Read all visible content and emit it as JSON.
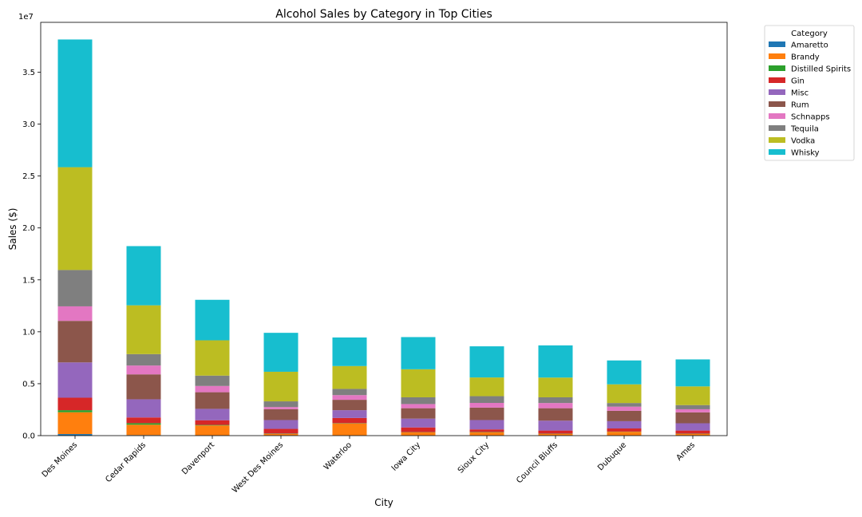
{
  "chart_data": {
    "type": "bar",
    "stacked": true,
    "title": "Alcohol Sales by Category in Top Cities",
    "xlabel": "City",
    "ylabel": "Sales ($)",
    "y_offset_label": "1e7",
    "ylim": [
      0,
      39800000
    ],
    "y_ticks": [
      0,
      5000000,
      10000000,
      15000000,
      20000000,
      25000000,
      30000000,
      35000000
    ],
    "y_tick_labels": [
      "0.0",
      "0.5",
      "1.0",
      "1.5",
      "2.0",
      "2.5",
      "3.0",
      "3.5"
    ],
    "legend_title": "Category",
    "legend_position": "outside-top-right",
    "grid": false,
    "categories": [
      "Des Moines",
      "Cedar Rapids",
      "Davenport",
      "West Des Moines",
      "Waterloo",
      "Iowa City",
      "Sioux City",
      "Council Bluffs",
      "Dubuque",
      "Ames"
    ],
    "series": [
      {
        "name": "Amaretto",
        "color": "#1f77b4",
        "values": [
          150000,
          50000,
          30000,
          20000,
          20000,
          20000,
          20000,
          20000,
          20000,
          20000
        ]
      },
      {
        "name": "Brandy",
        "color": "#ff7f0e",
        "values": [
          2100000,
          1000000,
          950000,
          150000,
          1150000,
          300000,
          300000,
          150000,
          350000,
          150000
        ]
      },
      {
        "name": "Distilled Spirits",
        "color": "#2ca02c",
        "values": [
          200000,
          150000,
          50000,
          30000,
          30000,
          20000,
          30000,
          20000,
          20000,
          20000
        ]
      },
      {
        "name": "Gin",
        "color": "#d62728",
        "values": [
          1200000,
          550000,
          450000,
          450000,
          500000,
          450000,
          250000,
          300000,
          300000,
          300000
        ]
      },
      {
        "name": "Misc",
        "color": "#9467bd",
        "values": [
          3400000,
          1750000,
          1100000,
          850000,
          750000,
          850000,
          900000,
          950000,
          700000,
          700000
        ]
      },
      {
        "name": "Rum",
        "color": "#8c564b",
        "values": [
          4000000,
          2400000,
          1600000,
          1050000,
          1000000,
          1000000,
          1200000,
          1200000,
          1000000,
          1050000
        ]
      },
      {
        "name": "Schnapps",
        "color": "#e377c2",
        "values": [
          1400000,
          850000,
          600000,
          200000,
          450000,
          400000,
          450000,
          500000,
          400000,
          300000
        ]
      },
      {
        "name": "Tequila",
        "color": "#7f7f7f",
        "values": [
          3500000,
          1100000,
          1000000,
          550000,
          600000,
          650000,
          650000,
          550000,
          350000,
          400000
        ]
      },
      {
        "name": "Vodka",
        "color": "#bcbd22",
        "values": [
          9900000,
          4700000,
          3400000,
          2850000,
          2200000,
          2700000,
          1800000,
          1900000,
          1800000,
          1800000
        ]
      },
      {
        "name": "Whisky",
        "color": "#17becf",
        "values": [
          12300000,
          5700000,
          3900000,
          3750000,
          2750000,
          3100000,
          3000000,
          3100000,
          2300000,
          2600000
        ]
      }
    ]
  }
}
